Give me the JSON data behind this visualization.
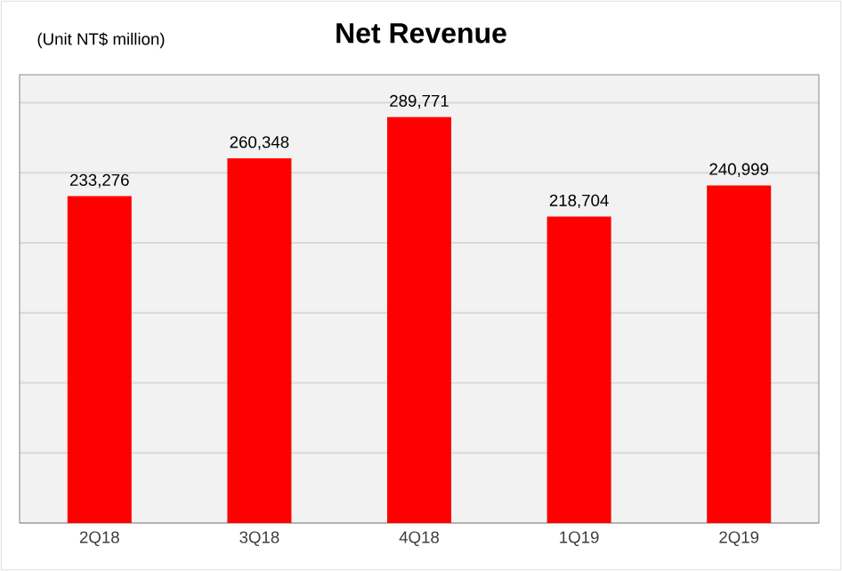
{
  "chart_data": {
    "type": "bar",
    "title": "Net Revenue",
    "annotations": [
      "(Unit NT$ million)"
    ],
    "categories": [
      "2Q18",
      "3Q18",
      "4Q18",
      "1Q19",
      "2Q19"
    ],
    "values": [
      233276,
      260348,
      289771,
      218704,
      240999
    ],
    "value_labels": [
      "233,276",
      "260,348",
      "289,771",
      "218,704",
      "240,999"
    ],
    "color": "#ff0000",
    "ylim": [
      0,
      320000
    ],
    "yticks": [
      0,
      50000,
      100000,
      150000,
      200000,
      250000,
      300000
    ],
    "tick_labels": "x",
    "grid": "y"
  }
}
